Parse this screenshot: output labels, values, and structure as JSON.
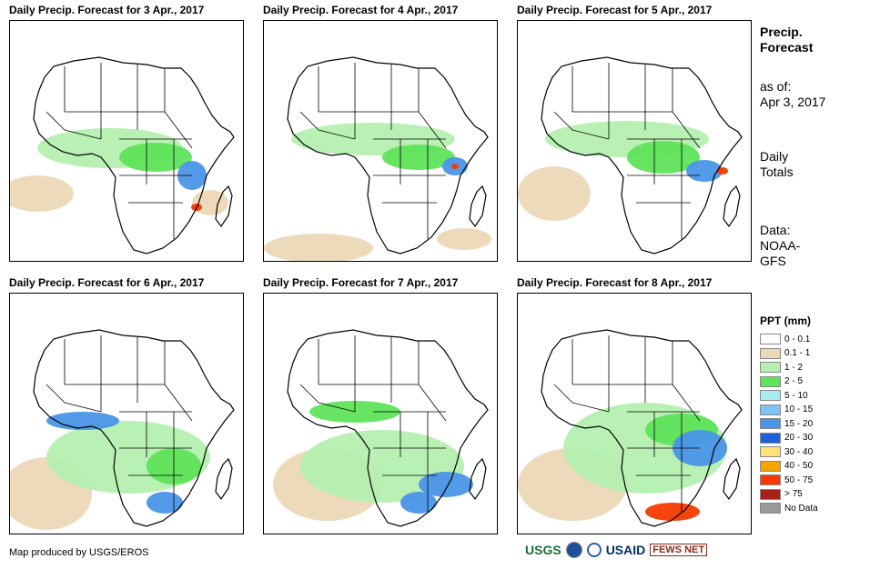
{
  "panels": [
    {
      "title": "Daily Precip. Forecast for 3 Apr., 2017"
    },
    {
      "title": "Daily Precip. Forecast for 4 Apr., 2017"
    },
    {
      "title": "Daily Precip. Forecast for 5 Apr., 2017"
    },
    {
      "title": "Daily Precip. Forecast for 6 Apr., 2017"
    },
    {
      "title": "Daily Precip. Forecast for 7 Apr., 2017"
    },
    {
      "title": "Daily Precip. Forecast for 8 Apr., 2017"
    }
  ],
  "side": {
    "heading1": "Precip.",
    "heading2": "Forecast",
    "asof_label": "as of:",
    "asof_date": "Apr 3, 2017",
    "totals1": "Daily",
    "totals2": "Totals",
    "data_label": "Data:",
    "data_src1": "NOAA-",
    "data_src2": "GFS"
  },
  "legend": {
    "title": "PPT (mm)",
    "items": [
      {
        "label": "0 - 0.1",
        "color": "#ffffff"
      },
      {
        "label": "0.1 - 1",
        "color": "#ecd8b6"
      },
      {
        "label": "1 - 2",
        "color": "#b5f0b0"
      },
      {
        "label": "2 - 5",
        "color": "#5fe35a"
      },
      {
        "label": "5 - 10",
        "color": "#a8ecf2"
      },
      {
        "label": "10 - 15",
        "color": "#7ec2f6"
      },
      {
        "label": "15 - 20",
        "color": "#4a95e8"
      },
      {
        "label": "20 - 30",
        "color": "#1f5fd7"
      },
      {
        "label": "30 - 40",
        "color": "#ffe27a"
      },
      {
        "label": "40 - 50",
        "color": "#f7a300"
      },
      {
        "label": "50 - 75",
        "color": "#f53a00"
      },
      {
        "label": "> 75",
        "color": "#a8201a"
      },
      {
        "label": "No Data",
        "color": "#999999"
      }
    ]
  },
  "footer": {
    "credit": "Map produced by USGS/EROS",
    "logo_usgs": "USGS",
    "logo_usaid": "USAID",
    "logo_fews": "FEWS NET"
  }
}
